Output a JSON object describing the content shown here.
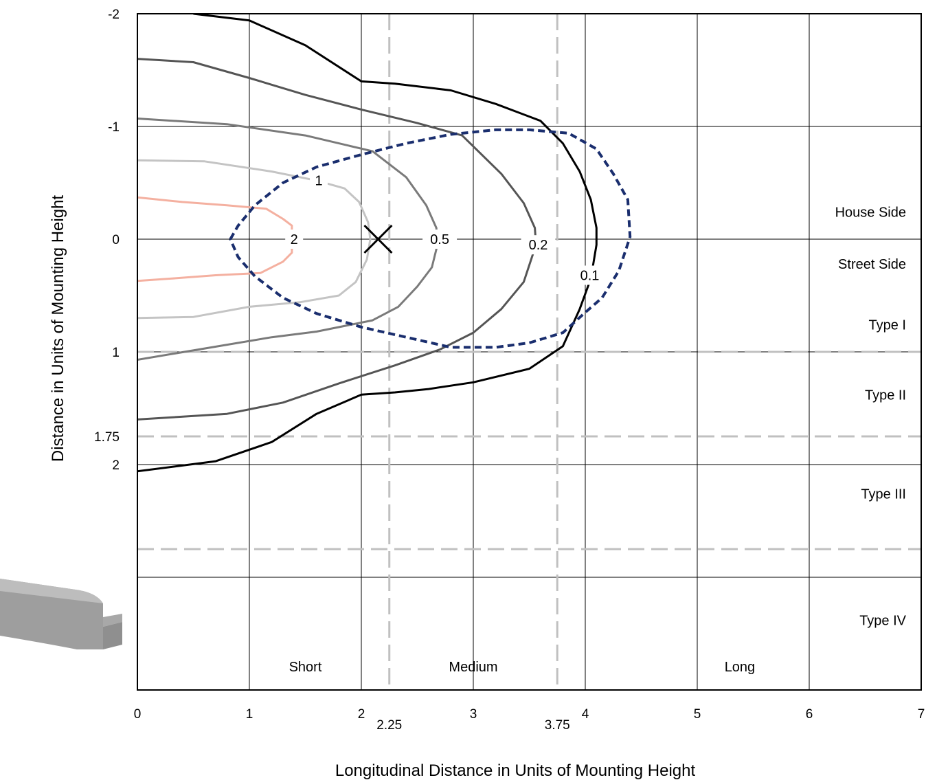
{
  "chart_data": {
    "type": "line",
    "title": "",
    "xlabel": "Longitudinal Distance in Units of Mounting Height",
    "ylabel": "Distance in Units of Mounting Height",
    "xlim": [
      0,
      7
    ],
    "ylim": [
      -2,
      4
    ],
    "y_inverted": true,
    "grid": true,
    "x_ticks": [
      {
        "value": 0,
        "label": "0"
      },
      {
        "value": 1,
        "label": "1"
      },
      {
        "value": 2,
        "label": "2"
      },
      {
        "value": 2.25,
        "label": "2.25"
      },
      {
        "value": 3,
        "label": "3"
      },
      {
        "value": 3.75,
        "label": "3.75"
      },
      {
        "value": 4,
        "label": "4"
      },
      {
        "value": 5,
        "label": "5"
      },
      {
        "value": 6,
        "label": "6"
      },
      {
        "value": 7,
        "label": "7"
      }
    ],
    "y_ticks": [
      {
        "value": -2,
        "label": "-2"
      },
      {
        "value": -1,
        "label": "-1"
      },
      {
        "value": 0,
        "label": "0"
      },
      {
        "value": 1,
        "label": "1"
      },
      {
        "value": 1.75,
        "label": "1.75"
      },
      {
        "value": 2,
        "label": "2"
      }
    ],
    "x_boundaries": [
      2.25,
      3.75
    ],
    "y_boundaries": [
      1,
      1.75,
      2.75
    ],
    "x_regions": [
      {
        "label": "Short",
        "x": 1.5
      },
      {
        "label": "Medium",
        "x": 3.0
      },
      {
        "label": "Long",
        "x": 5.38
      }
    ],
    "y_regions": [
      {
        "label": "House Side",
        "y": -0.24
      },
      {
        "label": "Street Side",
        "y": 0.22
      },
      {
        "label": "Type I",
        "y": 0.76
      },
      {
        "label": "Type II",
        "y": 1.38
      },
      {
        "label": "Type III",
        "y": 2.26
      },
      {
        "label": "Type IV",
        "y": 3.38
      }
    ],
    "max_point": {
      "x": 2.15,
      "y": 0
    },
    "series": [
      {
        "name": "2",
        "color": "#f4b0a0",
        "label": {
          "text": "2",
          "x": 1.4,
          "y": 0
        },
        "points": [
          [
            0,
            -0.37
          ],
          [
            0.4,
            -0.33
          ],
          [
            0.8,
            -0.3
          ],
          [
            1.15,
            -0.27
          ],
          [
            1.3,
            -0.18
          ],
          [
            1.38,
            -0.12
          ],
          [
            1.38,
            0.12
          ],
          [
            1.3,
            0.2
          ],
          [
            1.1,
            0.3
          ],
          [
            0.7,
            0.32
          ],
          [
            0.3,
            0.35
          ],
          [
            0,
            0.37
          ]
        ]
      },
      {
        "name": "1",
        "color": "#c4c4c4",
        "label": {
          "text": "1",
          "x": 1.62,
          "y": -0.52
        },
        "points": [
          [
            0,
            -0.7
          ],
          [
            0.6,
            -0.69
          ],
          [
            1.2,
            -0.6
          ],
          [
            1.6,
            -0.52
          ],
          [
            1.85,
            -0.45
          ],
          [
            1.98,
            -0.33
          ],
          [
            2.06,
            -0.15
          ],
          [
            2.08,
            0
          ],
          [
            2.05,
            0.18
          ],
          [
            1.95,
            0.38
          ],
          [
            1.8,
            0.5
          ],
          [
            1.45,
            0.56
          ],
          [
            1.0,
            0.6
          ],
          [
            0.5,
            0.69
          ],
          [
            0,
            0.7
          ]
        ]
      },
      {
        "name": "0.5",
        "color": "#7a7a7a",
        "label": {
          "text": "0.5",
          "x": 2.7,
          "y": 0
        },
        "points": [
          [
            0,
            -1.07
          ],
          [
            0.8,
            -1.02
          ],
          [
            1.5,
            -0.92
          ],
          [
            2.1,
            -0.78
          ],
          [
            2.4,
            -0.55
          ],
          [
            2.58,
            -0.3
          ],
          [
            2.67,
            -0.1
          ],
          [
            2.68,
            0.05
          ],
          [
            2.63,
            0.25
          ],
          [
            2.5,
            0.42
          ],
          [
            2.33,
            0.6
          ],
          [
            2.1,
            0.72
          ],
          [
            1.6,
            0.82
          ],
          [
            1.2,
            0.87
          ],
          [
            0.6,
            0.97
          ],
          [
            0,
            1.07
          ]
        ]
      },
      {
        "name": "0.2",
        "color": "#555555",
        "label": {
          "text": "0.2",
          "x": 3.58,
          "y": 0.05
        },
        "points": [
          [
            0,
            -1.6
          ],
          [
            0.5,
            -1.57
          ],
          [
            1.0,
            -1.43
          ],
          [
            1.5,
            -1.28
          ],
          [
            2.0,
            -1.15
          ],
          [
            2.5,
            -1.03
          ],
          [
            2.9,
            -0.92
          ],
          [
            3.25,
            -0.58
          ],
          [
            3.45,
            -0.32
          ],
          [
            3.55,
            -0.1
          ],
          [
            3.56,
            0.05
          ],
          [
            3.45,
            0.38
          ],
          [
            3.25,
            0.62
          ],
          [
            3.0,
            0.83
          ],
          [
            2.7,
            0.98
          ],
          [
            2.3,
            1.12
          ],
          [
            1.8,
            1.28
          ],
          [
            1.3,
            1.45
          ],
          [
            0.8,
            1.55
          ],
          [
            0,
            1.6
          ]
        ]
      },
      {
        "name": "0.1",
        "color": "#000000",
        "label": {
          "text": "0.1",
          "x": 4.04,
          "y": 0.32
        },
        "points": [
          [
            0.5,
            -2.0
          ],
          [
            1.0,
            -1.94
          ],
          [
            1.5,
            -1.72
          ],
          [
            2.0,
            -1.4
          ],
          [
            2.3,
            -1.38
          ],
          [
            2.8,
            -1.32
          ],
          [
            3.2,
            -1.2
          ],
          [
            3.6,
            -1.05
          ],
          [
            3.8,
            -0.85
          ],
          [
            3.95,
            -0.6
          ],
          [
            4.05,
            -0.35
          ],
          [
            4.1,
            -0.1
          ],
          [
            4.1,
            0.05
          ],
          [
            4.05,
            0.35
          ],
          [
            3.95,
            0.62
          ],
          [
            3.8,
            0.95
          ],
          [
            3.5,
            1.15
          ],
          [
            3.0,
            1.27
          ],
          [
            2.6,
            1.33
          ],
          [
            2.3,
            1.36
          ],
          [
            2.0,
            1.38
          ],
          [
            1.6,
            1.55
          ],
          [
            1.2,
            1.8
          ],
          [
            0.7,
            1.97
          ],
          [
            0,
            2.06
          ]
        ]
      },
      {
        "name": "",
        "color": "#1a2e6e",
        "dashed": true,
        "points": [
          [
            0.83,
            0
          ],
          [
            0.9,
            -0.12
          ],
          [
            1.05,
            -0.3
          ],
          [
            1.3,
            -0.5
          ],
          [
            1.6,
            -0.64
          ],
          [
            2.0,
            -0.75
          ],
          [
            2.4,
            -0.85
          ],
          [
            2.8,
            -0.93
          ],
          [
            3.2,
            -0.97
          ],
          [
            3.5,
            -0.97
          ],
          [
            3.85,
            -0.94
          ],
          [
            4.1,
            -0.8
          ],
          [
            4.25,
            -0.58
          ],
          [
            4.38,
            -0.35
          ],
          [
            4.4,
            -0.02
          ],
          [
            4.3,
            0.28
          ],
          [
            4.15,
            0.52
          ],
          [
            4.0,
            0.65
          ],
          [
            3.8,
            0.83
          ],
          [
            3.5,
            0.92
          ],
          [
            3.2,
            0.96
          ],
          [
            2.8,
            0.96
          ],
          [
            2.4,
            0.87
          ],
          [
            2.0,
            0.78
          ],
          [
            1.6,
            0.66
          ],
          [
            1.3,
            0.52
          ],
          [
            1.05,
            0.33
          ],
          [
            0.9,
            0.16
          ],
          [
            0.83,
            0
          ]
        ]
      }
    ]
  }
}
